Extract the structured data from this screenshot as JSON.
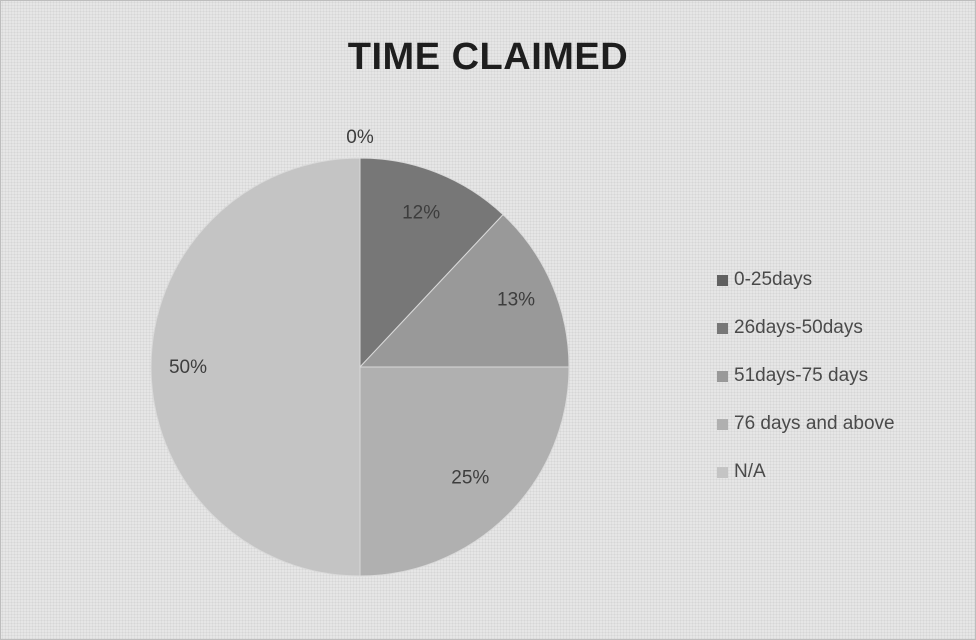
{
  "chart_data": {
    "type": "pie",
    "title": "TIME CLAIMED",
    "start_angle": "12 o'clock, clockwise",
    "legend_position": "right",
    "slices": [
      {
        "category": "0-25days",
        "value": 0,
        "label": "0%",
        "color": "#616161"
      },
      {
        "category": "26days-50days",
        "value": 12,
        "label": "12%",
        "color": "#777777"
      },
      {
        "category": "51days-75 days",
        "value": 13,
        "label": "13%",
        "color": "#999999"
      },
      {
        "category": "76 days and above",
        "value": 25,
        "label": "25%",
        "color": "#b0b0b0"
      },
      {
        "category": "N/A",
        "value": 50,
        "label": "50%",
        "color": "#c4c4c4"
      }
    ]
  }
}
